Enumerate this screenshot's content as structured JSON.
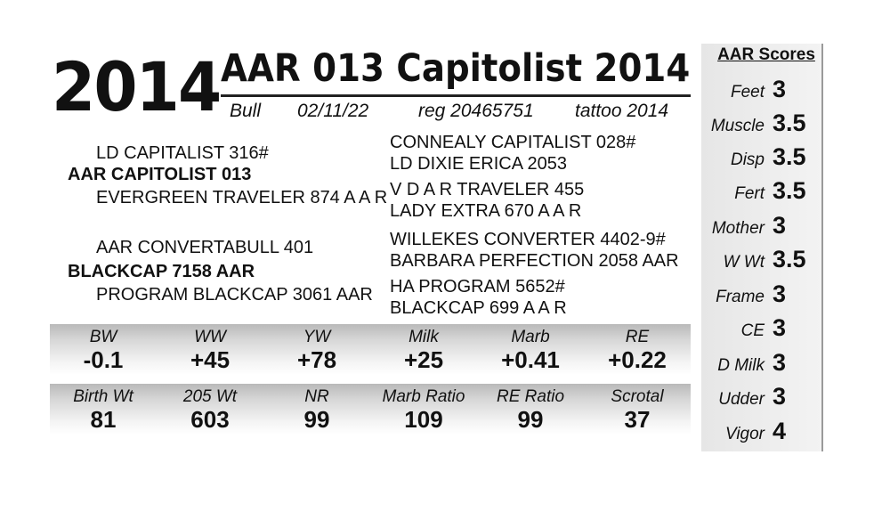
{
  "lot_number": "2014",
  "animal_name": "AAR 013 Capitolist 2014",
  "info": {
    "sex": "Bull",
    "birth_date": "02/11/22",
    "registration": "reg 20465751",
    "tattoo": "tattoo 2014"
  },
  "pedigree": {
    "sire": "AAR CAPITOLIST 013",
    "sire_sire": "LD CAPITALIST 316#",
    "sire_dam": "EVERGREEN TRAVELER 874 A A R",
    "sire_sire_sire": "CONNEALY CAPITALIST 028#",
    "sire_sire_dam": "LD DIXIE ERICA 2053",
    "sire_dam_sire": "V D A R TRAVELER 455",
    "sire_dam_dam": "LADY EXTRA 670 A A R",
    "dam": "BLACKCAP 7158 AAR",
    "dam_sire": "AAR CONVERTABULL 401",
    "dam_dam": "PROGRAM BLACKCAP 3061 AAR",
    "dam_sire_sire": "WILLEKES CONVERTER 4402-9#",
    "dam_sire_dam": "BARBARA PERFECTION 2058 AAR",
    "dam_dam_sire": "HA PROGRAM 5652#",
    "dam_dam_dam": "BLACKCAP 699 A A R"
  },
  "epds": [
    {
      "label": "BW",
      "value": "-0.1"
    },
    {
      "label": "WW",
      "value": "+45"
    },
    {
      "label": "YW",
      "value": "+78"
    },
    {
      "label": "Milk",
      "value": "+25"
    },
    {
      "label": "Marb",
      "value": "+0.41"
    },
    {
      "label": "RE",
      "value": "+0.22"
    }
  ],
  "performance": [
    {
      "label": "Birth Wt",
      "value": "81"
    },
    {
      "label": "205 Wt",
      "value": "603"
    },
    {
      "label": "NR",
      "value": "99"
    },
    {
      "label": "Marb Ratio",
      "value": "109"
    },
    {
      "label": "RE Ratio",
      "value": "99"
    },
    {
      "label": "Scrotal",
      "value": "37"
    }
  ],
  "aar_scores": {
    "title": "AAR Scores",
    "items": [
      {
        "label": "Feet",
        "value": "3"
      },
      {
        "label": "Muscle",
        "value": "3.5"
      },
      {
        "label": "Disp",
        "value": "3.5"
      },
      {
        "label": "Fert",
        "value": "3.5"
      },
      {
        "label": "Mother",
        "value": "3"
      },
      {
        "label": "W Wt",
        "value": "3.5"
      },
      {
        "label": "Frame",
        "value": "3"
      },
      {
        "label": "CE",
        "value": "3"
      },
      {
        "label": "D Milk",
        "value": "3"
      },
      {
        "label": "Udder",
        "value": "3"
      },
      {
        "label": "Vigor",
        "value": "4"
      }
    ]
  }
}
